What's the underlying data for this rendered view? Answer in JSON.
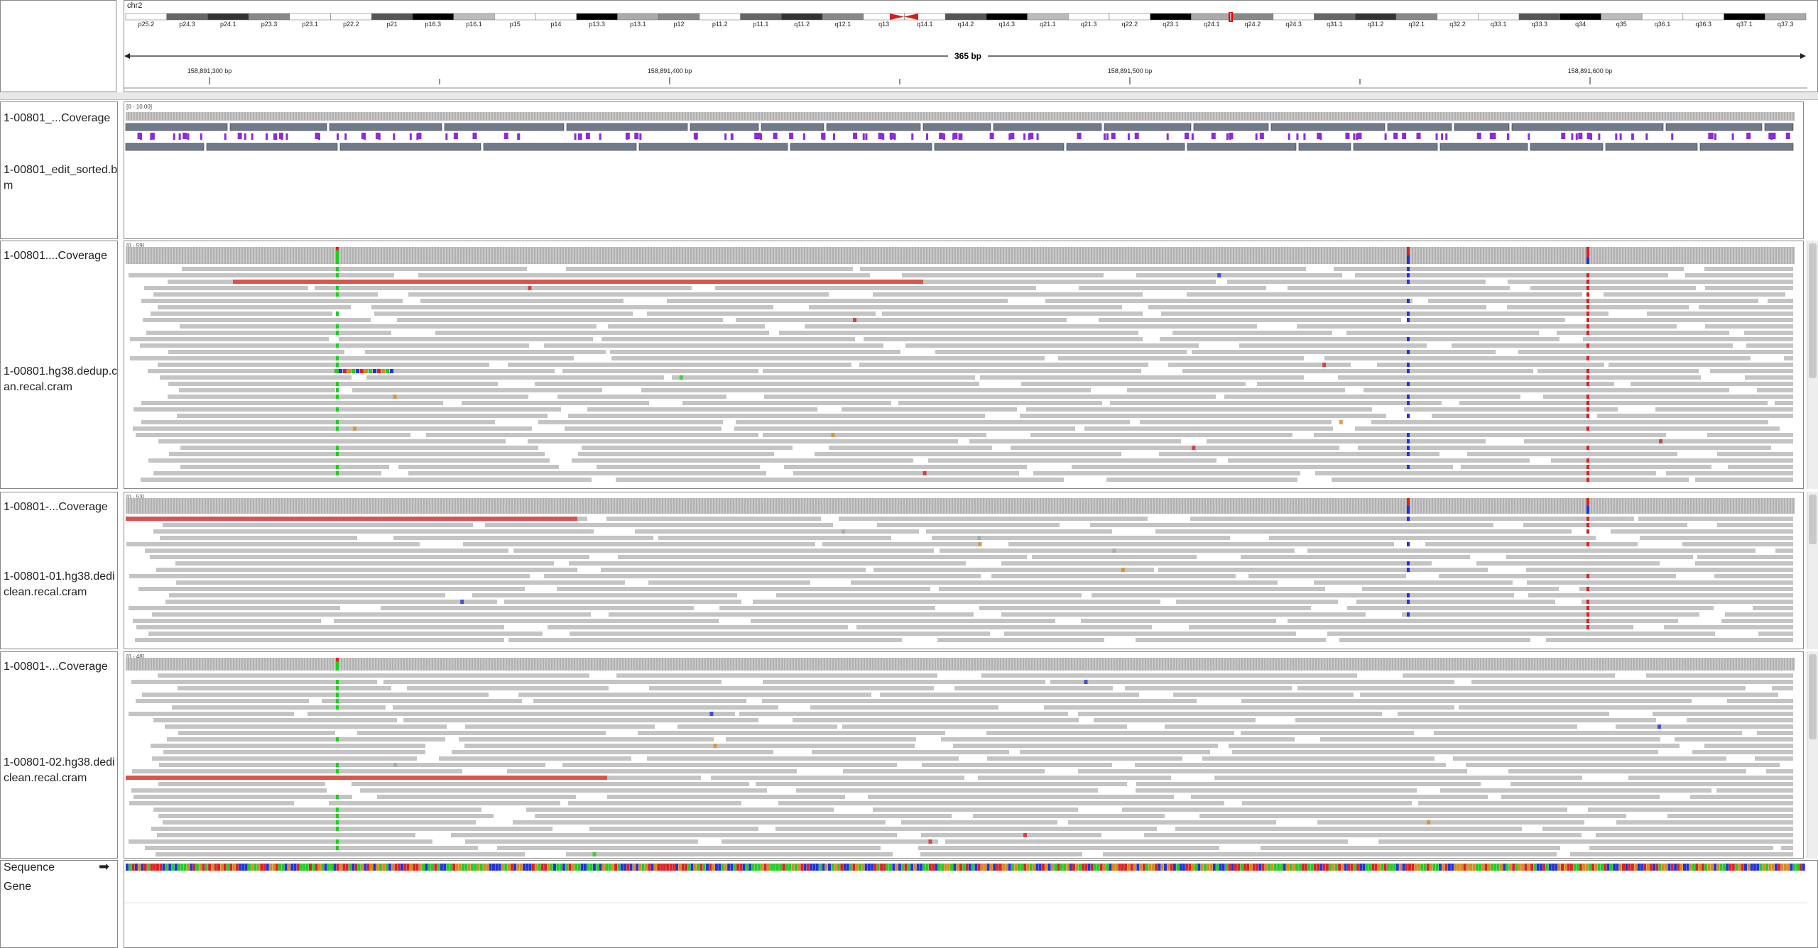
{
  "header": {
    "chromosome": "chr2",
    "span": "365 bp",
    "ideogram_bands": [
      "p25.2",
      "p24.3",
      "p24.1",
      "p23.3",
      "p23.1",
      "p22.2",
      "p21",
      "p16.3",
      "p16.1",
      "p15",
      "p14",
      "p13.3",
      "p13.1",
      "p12",
      "p11.2",
      "p11.1",
      "q11.2",
      "q12.1",
      "q13",
      "q14.1",
      "q14.2",
      "q14.3",
      "q21.1",
      "q21.3",
      "q22.2",
      "q23.1",
      "q24.1",
      "q24.2",
      "q24.3",
      "q31.1",
      "q31.2",
      "q32.1",
      "q32.2",
      "q33.1",
      "q33.3",
      "q34",
      "q35",
      "q36.1",
      "q36.3",
      "q37.1",
      "q37.3"
    ],
    "ruler_ticks": [
      "158,891,300 bp",
      "158,891,400 bp",
      "158,891,500 bp",
      "158,891,600 bp"
    ]
  },
  "panels": [
    {
      "coverage_label": "1-00801_...Coverage",
      "coverage_range": "[0 - 10.00]",
      "track_label": "1-00801_edit_sorted.bam",
      "track_label_lines": [
        "1-00801_edit_sorted.b",
        "m"
      ]
    },
    {
      "coverage_label": "1-00801....Coverage",
      "coverage_range": "[0 - 59]",
      "track_label": "1-00801.hg38.dedup.clean.recal.cram",
      "track_label_lines": [
        "1-00801.hg38.dedup.c",
        "an.recal.cram"
      ]
    },
    {
      "coverage_label": "1-00801-...Coverage",
      "coverage_range": "[0 - 53]",
      "track_label": "1-00801-01.hg38.dedup.clean.recal.cram",
      "track_label_lines": [
        "1-00801-01.hg38.dedi",
        "clean.recal.cram"
      ]
    },
    {
      "coverage_label": "1-00801-...Coverage",
      "coverage_range": "[0 - 48]",
      "track_label": "1-00801-02.hg38.dedup.clean.recal.cram",
      "track_label_lines": [
        "1-00801-02.hg38.dedi",
        "clean.recal.cram"
      ]
    }
  ],
  "bottom": {
    "sequence_label": "Sequence",
    "sequence_arrow": "➡",
    "gene_label": "Gene"
  },
  "colors": {
    "read": "#c4c4c4",
    "coverage": "#a9a9a9",
    "long_read": "#d9534f",
    "base_A": "#22cc22",
    "base_C": "#2233dd",
    "base_G": "#d98a1f",
    "base_T": "#dd2222",
    "insertion": "#8a2be2"
  }
}
